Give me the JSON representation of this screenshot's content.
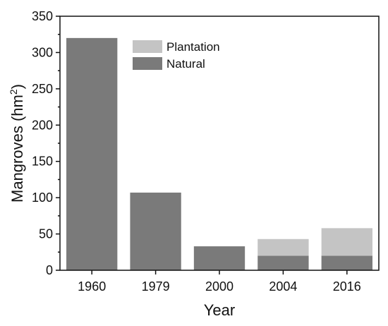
{
  "chart_data": {
    "type": "bar",
    "stacked": true,
    "categories": [
      "1960",
      "1979",
      "2000",
      "2004",
      "2016"
    ],
    "series": [
      {
        "name": "Natural",
        "values": [
          320,
          107,
          33,
          20,
          20
        ],
        "color": "#7a7a7a"
      },
      {
        "name": "Plantation",
        "values": [
          0,
          0,
          0,
          23,
          38
        ],
        "color": "#c4c4c4"
      }
    ],
    "xlabel": "Year",
    "ylabel": "Mangroves (hm",
    "ylabel_superscript": "2",
    "ylabel_close": ")",
    "ylim": [
      0,
      350
    ],
    "yticks": [
      "0",
      "50",
      "100",
      "150",
      "200",
      "250",
      "300",
      "350"
    ],
    "grid": false,
    "legend_position": "top-center",
    "legend_order": [
      "Plantation",
      "Natural"
    ]
  }
}
